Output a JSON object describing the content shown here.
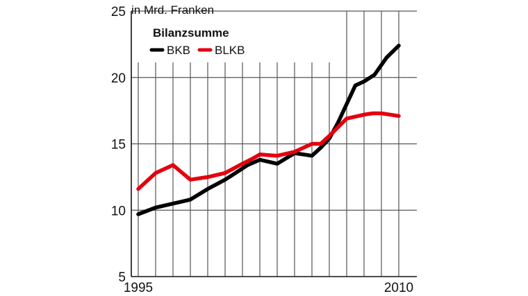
{
  "chart_data": {
    "type": "line",
    "unit_label": "in Mrd. Franken",
    "legend_title": "Bilanzsumme",
    "x": [
      1995,
      1996,
      1997,
      1998,
      1999,
      2000,
      2001,
      2002,
      2003,
      2004,
      2005,
      2006,
      2007,
      2008,
      2009,
      2010
    ],
    "x_tick_labels": [
      "1995",
      "2010"
    ],
    "y_ticks": [
      5,
      10,
      15,
      20,
      25
    ],
    "ylim": [
      5,
      25
    ],
    "grid": true,
    "legend_position": "top-left",
    "series": [
      {
        "name": "BKB",
        "color": "#000000",
        "x": [
          1995,
          1996,
          1997,
          1998,
          1999,
          2000,
          2000.6,
          2001.3,
          2002,
          2003,
          2004,
          2005,
          2005.5,
          2006,
          2006.5,
          2007,
          2007.5,
          2008,
          2008.6,
          2009.3,
          2010
        ],
        "values": [
          9.7,
          10.2,
          10.5,
          10.8,
          11.6,
          12.3,
          12.8,
          13.4,
          13.8,
          13.5,
          14.3,
          14.1,
          14.7,
          15.4,
          16.6,
          18.0,
          19.4,
          19.7,
          20.2,
          21.5,
          22.4
        ]
      },
      {
        "name": "BLKB",
        "color": "#e3000f",
        "x": [
          1995,
          1996,
          1997,
          1998,
          1999,
          2000,
          2001,
          2001.6,
          2002,
          2003,
          2004,
          2004.5,
          2005,
          2005.5,
          2006,
          2007,
          2008,
          2008.5,
          2009,
          2010
        ],
        "values": [
          11.6,
          12.8,
          13.4,
          12.3,
          12.5,
          12.8,
          13.5,
          13.9,
          14.2,
          14.1,
          14.4,
          14.7,
          15.0,
          15.0,
          15.6,
          16.9,
          17.2,
          17.3,
          17.3,
          17.1
        ]
      }
    ]
  }
}
